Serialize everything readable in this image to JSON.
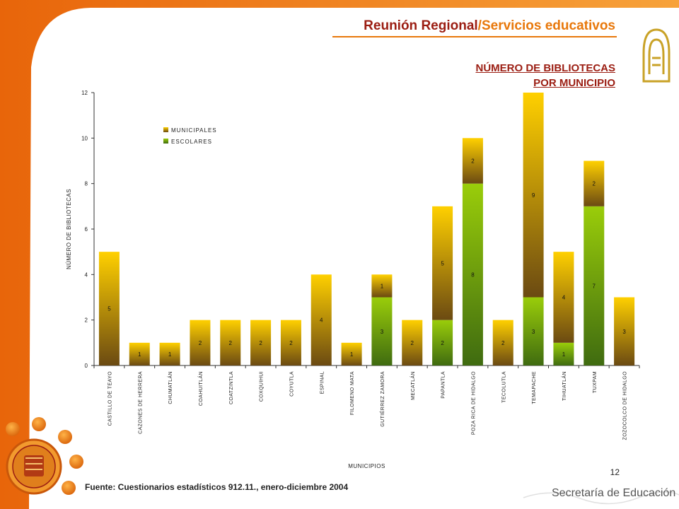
{
  "header": {
    "title_main": "Reunión Regional",
    "title_sep": "/",
    "title_sub": "Servicios educativos"
  },
  "chart_heading": {
    "line1": "NÚMERO DE BIBLIOTECAS",
    "line2": "POR MUNICIPIO"
  },
  "page_number": "12",
  "source": "Fuente: Cuestionarios estadísticos 912.11., enero-diciembre 2004",
  "footer": {
    "org": "Secretaría de Educación"
  },
  "colors": {
    "accent_orange": "#ef7a12",
    "title_red": "#9b1d12",
    "municipales_top": "#ffd000",
    "municipales_bottom": "#6b4a12",
    "escolares_top": "#9acd0a",
    "escolares_bottom": "#3f6b10"
  },
  "icons": [
    "aztec-logo-icon",
    "state-seal-icon"
  ],
  "chart_data": {
    "type": "bar",
    "stacked": true,
    "categories": [
      "CASTILLO DE TEAYO",
      "CAZONES DE HERRERA",
      "CHUMATLÁN",
      "COAHUITLÁN",
      "COATZINTLA",
      "COXQUIHUI",
      "COYUTLA",
      "ESPINAL",
      "FILOMENO MATA",
      "GUTIÉRREZ ZAMORA",
      "MECATLÁN",
      "PAPANTLA",
      "POZA RICA DE HIDALGO",
      "TECOLUTLA",
      "TEMAPACHE",
      "TIHUATLÁN",
      "TUXPAM",
      "ZOZOCOLCO DE HIDALGO"
    ],
    "series": [
      {
        "name": "ESCOLARES",
        "values": [
          0,
          0,
          0,
          0,
          0,
          0,
          0,
          0,
          0,
          3,
          0,
          2,
          8,
          0,
          3,
          1,
          7,
          0
        ]
      },
      {
        "name": "MUNICIPALES",
        "values": [
          5,
          1,
          1,
          2,
          2,
          2,
          2,
          4,
          1,
          1,
          2,
          5,
          2,
          2,
          9,
          4,
          2,
          3
        ]
      }
    ],
    "legend_order": [
      "MUNICIPALES",
      "ESCOLARES"
    ],
    "legend_position": "top-left",
    "xlabel": "MUNICIPIOS",
    "ylabel": "NÚMERO DE BIBLIOTECAS",
    "ylim": [
      0,
      12
    ],
    "yticks": [
      0,
      2,
      4,
      6,
      8,
      10,
      12
    ],
    "grid": false
  }
}
